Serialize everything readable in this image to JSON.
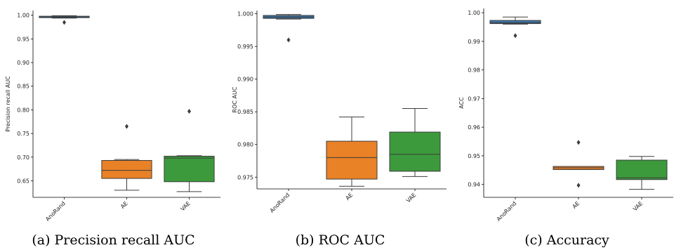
{
  "chart_data": [
    {
      "type": "box",
      "caption": "(a) Precision recall AUC",
      "ylabel": "Precision recall AUC",
      "ylim": [
        0.615,
        1.01
      ],
      "yticks": [
        0.65,
        0.7,
        0.75,
        0.8,
        0.85,
        0.9,
        0.95,
        1.0
      ],
      "ytick_labels": [
        "0.65",
        "0.70",
        "0.75",
        "0.80",
        "0.85",
        "0.90",
        "0.95",
        "1.00"
      ],
      "categories": [
        "AnoRand",
        "AE",
        "VAE"
      ],
      "boxes": [
        {
          "min": 0.994,
          "q1": 0.995,
          "median": 0.996,
          "q3": 0.998,
          "max": 0.999,
          "outliers": [
            0.985
          ]
        },
        {
          "min": 0.63,
          "q1": 0.655,
          "median": 0.672,
          "q3": 0.693,
          "max": 0.695,
          "outliers": [
            0.765
          ]
        },
        {
          "min": 0.627,
          "q1": 0.648,
          "median": 0.698,
          "q3": 0.702,
          "max": 0.703,
          "outliers": [
            0.797
          ]
        }
      ]
    },
    {
      "type": "box",
      "caption": "(b) ROC AUC",
      "ylabel": "ROC AUC",
      "ylim": [
        0.9732,
        1.0005
      ],
      "yticks": [
        0.975,
        0.98,
        0.985,
        0.99,
        0.995,
        1.0
      ],
      "ytick_labels": [
        "0.975",
        "0.980",
        "0.985",
        "0.990",
        "0.995",
        "1.000"
      ],
      "categories": [
        "AnoRand",
        "AE",
        "VAE"
      ],
      "boxes": [
        {
          "min": 0.9992,
          "q1": 0.9993,
          "median": 0.9995,
          "q3": 0.99975,
          "max": 0.9999,
          "outliers": [
            0.996
          ]
        },
        {
          "min": 0.9736,
          "q1": 0.9747,
          "median": 0.978,
          "q3": 0.9805,
          "max": 0.9842,
          "outliers": []
        },
        {
          "min": 0.9751,
          "q1": 0.9759,
          "median": 0.9785,
          "q3": 0.9819,
          "max": 0.9855,
          "outliers": []
        }
      ]
    },
    {
      "type": "box",
      "caption": "(c) Accuracy",
      "ylabel": "ACC",
      "ylim": [
        0.9355,
        1.0015
      ],
      "yticks": [
        0.94,
        0.95,
        0.96,
        0.97,
        0.98,
        0.99,
        1.0
      ],
      "ytick_labels": [
        "0.94",
        "0.95",
        "0.96",
        "0.97",
        "0.98",
        "0.99",
        "1.00"
      ],
      "categories": [
        "AnoRand",
        "AE",
        "VAE"
      ],
      "boxes": [
        {
          "min": 0.996,
          "q1": 0.9962,
          "median": 0.9965,
          "q3": 0.9973,
          "max": 0.9985,
          "outliers": [
            0.992
          ]
        },
        {
          "min": 0.9452,
          "q1": 0.9452,
          "median": 0.9458,
          "q3": 0.9463,
          "max": 0.9463,
          "outliers": [
            0.9547,
            0.9397
          ]
        },
        {
          "min": 0.9383,
          "q1": 0.9417,
          "median": 0.9423,
          "q3": 0.9485,
          "max": 0.9498,
          "outliers": []
        }
      ]
    }
  ],
  "colors": {
    "AnoRand": "#3a75a8",
    "AE": "#e98126",
    "VAE": "#3c9a3c",
    "line": "#3d3d3d"
  }
}
